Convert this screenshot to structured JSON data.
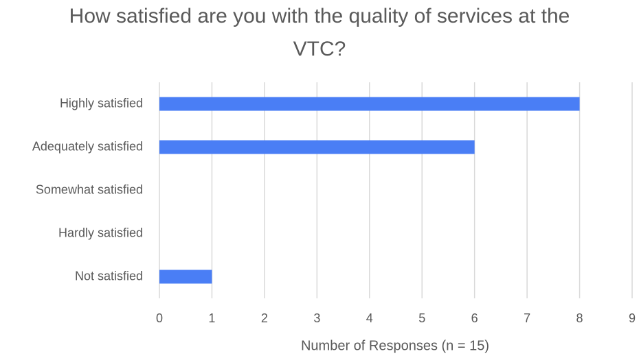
{
  "chart_data": {
    "type": "bar",
    "orientation": "horizontal",
    "title": "How satisfied are you with the quality of services at the VTC?",
    "x_label": "Number of Responses (n = 15)",
    "categories": [
      "Highly satisfied",
      "Adequately satisfied",
      "Somewhat satisfied",
      "Hardly satisfied",
      "Not satisfied"
    ],
    "values": [
      8,
      6,
      0,
      0,
      1
    ],
    "color": "#4a7ef5",
    "xlim": [
      0,
      9
    ],
    "xticks": [
      0,
      1,
      2,
      3,
      4,
      5,
      6,
      7,
      8,
      9
    ],
    "grid": true
  }
}
